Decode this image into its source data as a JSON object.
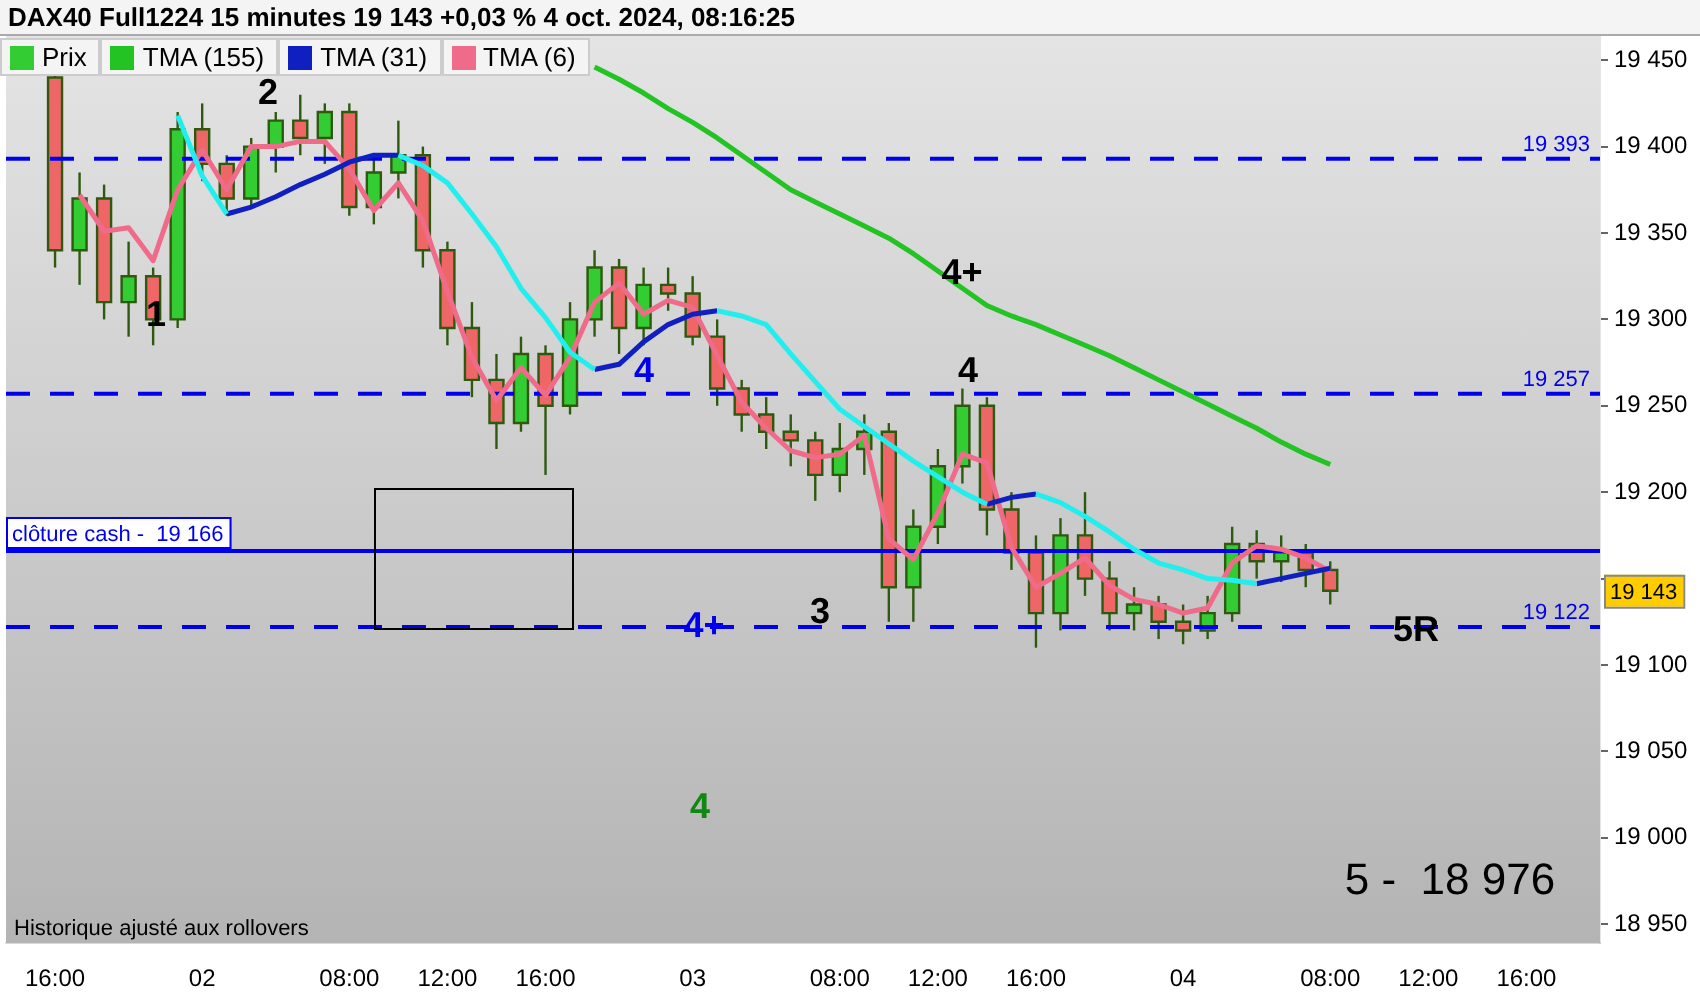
{
  "chart_data": {
    "type": "candlestick",
    "title": "DAX40 Full1224 15 minutes 19 143 +0,03 % 4 oct. 2024, 08:16:25",
    "categories": [
      null,
      null,
      "16:00",
      null,
      null,
      null,
      null,
      null,
      "02",
      null,
      null,
      null,
      null,
      null,
      "08:00",
      null,
      null,
      null,
      "12:00",
      null,
      null,
      null,
      "16:00",
      null,
      null,
      null,
      null,
      null,
      "03",
      null,
      null,
      null,
      null,
      null,
      "08:00",
      null,
      null,
      null,
      "12:00",
      null,
      null,
      null,
      "16:00",
      null,
      null,
      null,
      null,
      null,
      "04",
      null,
      null,
      null,
      null,
      null,
      "08:00",
      null,
      null,
      null,
      "12:00",
      null,
      null,
      null,
      "16:00",
      null,
      null,
      null
    ],
    "ylim": [
      18939,
      19464
    ],
    "yticks": [
      {
        "value": 18950,
        "label": "18 950"
      },
      {
        "value": 19000,
        "label": "19 000"
      },
      {
        "value": 19050,
        "label": "19 050"
      },
      {
        "value": 19100,
        "label": "19 100"
      },
      {
        "value": 19150,
        "label": null
      },
      {
        "value": 19200,
        "label": "19 200"
      },
      {
        "value": 19250,
        "label": "19 250"
      },
      {
        "value": 19300,
        "label": "19 300"
      },
      {
        "value": 19350,
        "label": "19 350"
      },
      {
        "value": 19400,
        "label": "19 400"
      },
      {
        "value": 19450,
        "label": "19 450"
      }
    ],
    "grid": false,
    "legend": "top left",
    "series": [
      {
        "type": "candlestick",
        "name": "Prix",
        "color": "#33cc33",
        "ohlc": [
          null,
          null,
          [
            19440,
            19442,
            19330,
            19340
          ],
          [
            19340,
            19385,
            19320,
            19370
          ],
          [
            19370,
            19378,
            19300,
            19310
          ],
          [
            19310,
            19345,
            19290,
            19325
          ],
          [
            19325,
            19330,
            19285,
            19300
          ],
          [
            19300,
            19420,
            19295,
            19410
          ],
          [
            19410,
            19425,
            19380,
            19390
          ],
          [
            19390,
            19395,
            19360,
            19370
          ],
          [
            19370,
            19405,
            19365,
            19400
          ],
          [
            19400,
            19420,
            19385,
            19415
          ],
          [
            19415,
            19430,
            19395,
            19405
          ],
          [
            19405,
            19425,
            19390,
            19420
          ],
          [
            19420,
            19425,
            19360,
            19365
          ],
          [
            19365,
            19395,
            19355,
            19385
          ],
          [
            19385,
            19415,
            19370,
            19395
          ],
          [
            19395,
            19400,
            19330,
            19340
          ],
          [
            19340,
            19345,
            19285,
            19295
          ],
          [
            19295,
            19310,
            19255,
            19265
          ],
          [
            19265,
            19280,
            19225,
            19240
          ],
          [
            19240,
            19290,
            19235,
            19280
          ],
          [
            19280,
            19285,
            19210,
            19250
          ],
          [
            19250,
            19310,
            19245,
            19300
          ],
          [
            19300,
            19340,
            19290,
            19330
          ],
          [
            19330,
            19335,
            19280,
            19295
          ],
          [
            19295,
            19330,
            19285,
            19320
          ],
          [
            19320,
            19330,
            19305,
            19315
          ],
          [
            19315,
            19325,
            19285,
            19290
          ],
          [
            19290,
            19300,
            19250,
            19260
          ],
          [
            19260,
            19265,
            19235,
            19245
          ],
          [
            19245,
            19255,
            19225,
            19235
          ],
          [
            19235,
            19245,
            19215,
            19230
          ],
          [
            19230,
            19235,
            19195,
            19210
          ],
          [
            19210,
            19240,
            19200,
            19225
          ],
          [
            19225,
            19245,
            19210,
            19235
          ],
          [
            19235,
            19240,
            19125,
            19145
          ],
          [
            19145,
            19190,
            19125,
            19180
          ],
          [
            19180,
            19225,
            19170,
            19215
          ],
          [
            19215,
            19260,
            19205,
            19250
          ],
          [
            19250,
            19255,
            19175,
            19190
          ],
          [
            19190,
            19200,
            19155,
            19165
          ],
          [
            19165,
            19175,
            19110,
            19130
          ],
          [
            19130,
            19185,
            19120,
            19175
          ],
          [
            19175,
            19200,
            19140,
            19150
          ],
          [
            19150,
            19160,
            19120,
            19130
          ],
          [
            19130,
            19145,
            19120,
            19135
          ],
          [
            19135,
            19140,
            19115,
            19125
          ],
          [
            19125,
            19135,
            19112,
            19120
          ],
          [
            19120,
            19140,
            19115,
            19130
          ],
          [
            19130,
            19180,
            19125,
            19170
          ],
          [
            19170,
            19178,
            19150,
            19160
          ],
          [
            19160,
            19175,
            19148,
            19165
          ],
          [
            19165,
            19170,
            19145,
            19155
          ],
          [
            19155,
            19160,
            19135,
            19143
          ],
          null,
          null,
          null,
          null,
          null,
          null,
          null,
          null,
          null,
          null,
          null
        ],
        "colors": [
          null,
          null,
          "#ee6666",
          "#33cc33",
          "#ee6666",
          "#33cc33",
          "#ee6666",
          "#33cc33",
          "#ee6666",
          "#ee6666",
          "#33cc33",
          "#33cc33",
          "#ee6666",
          "#33cc33",
          "#ee6666",
          "#33cc33",
          "#33cc33",
          "#ee6666",
          "#ee6666",
          "#ee6666",
          "#ee6666",
          "#33cc33",
          "#ee6666",
          "#33cc33",
          "#33cc33",
          "#ee6666",
          "#33cc33",
          "#ee6666",
          "#ee6666",
          "#ee6666",
          "#ee6666",
          "#ee6666",
          "#ee6666",
          "#ee6666",
          "#33cc33",
          "#33cc33",
          "#ee6666",
          "#33cc33",
          "#33cc33",
          "#33cc33",
          "#ee6666",
          "#ee6666",
          "#ee6666",
          "#33cc33",
          "#ee6666",
          "#ee6666",
          "#33cc33",
          "#ee6666",
          "#ee6666",
          "#33cc33",
          "#33cc33",
          "#ee6666",
          "#33cc33",
          "#ee6666",
          "#ee6666",
          null,
          null,
          null,
          null,
          null,
          null,
          null,
          null,
          null,
          null,
          null
        ]
      },
      {
        "type": "line",
        "name": "TMA (155)",
        "color": "#22c322",
        "values": [
          null,
          null,
          null,
          null,
          null,
          null,
          null,
          null,
          null,
          null,
          null,
          null,
          null,
          null,
          null,
          null,
          null,
          null,
          null,
          null,
          null,
          null,
          null,
          null,
          19446,
          19439,
          19431,
          19422,
          19414,
          19405,
          19395,
          19385,
          19375,
          19368,
          19361,
          19354,
          19347,
          19338,
          19328,
          19318,
          19308,
          19302,
          19297,
          19291,
          19285,
          19279,
          19272,
          19265,
          19258,
          19251,
          19244,
          19237,
          19229,
          19222,
          19216,
          null,
          null,
          null,
          null,
          null,
          null,
          null,
          null,
          null,
          null,
          null
        ]
      },
      {
        "type": "line",
        "color": "#22eeee",
        "values": [
          null,
          null,
          null,
          null,
          null,
          null,
          null,
          19418,
          19383,
          19361,
          null,
          null,
          null,
          null,
          null,
          null,
          19395,
          19389,
          19379,
          19361,
          19342,
          19318,
          19301,
          19281,
          19271,
          null,
          null,
          null,
          null,
          19305,
          19302,
          19297,
          19280,
          19264,
          19248,
          19238,
          19228,
          19218,
          19209,
          19200,
          19193,
          null,
          19199,
          19194,
          19186,
          19177,
          19167,
          19159,
          19155,
          19150,
          19149,
          19147,
          null,
          null,
          null,
          null,
          null,
          null,
          null,
          null,
          null,
          null,
          null,
          null,
          null,
          null
        ]
      },
      {
        "type": "line",
        "name": "TMA (31)",
        "color": "#1020c0",
        "values": [
          null,
          null,
          null,
          null,
          null,
          null,
          null,
          null,
          null,
          19361,
          19365,
          19371,
          19378,
          19384,
          19391,
          19395,
          19395,
          null,
          null,
          null,
          null,
          null,
          null,
          null,
          19271,
          19274,
          19287,
          19297,
          19303,
          19305,
          null,
          null,
          null,
          null,
          null,
          null,
          null,
          null,
          null,
          null,
          19193,
          19197,
          19199,
          null,
          null,
          null,
          null,
          null,
          null,
          null,
          null,
          19147,
          19150,
          19153,
          19156,
          null,
          null,
          null,
          null,
          null,
          null,
          null,
          null,
          null,
          null,
          null
        ]
      },
      {
        "type": "line",
        "name": "TMA (6)",
        "color": "#f06a8a",
        "values": [
          null,
          null,
          null,
          19372,
          19351,
          19353,
          19334,
          19375,
          19398,
          19375,
          19400,
          19400,
          19403,
          19403,
          19387,
          19363,
          19379,
          19357,
          19316,
          19278,
          19253,
          19272,
          19256,
          19278,
          19310,
          19321,
          19303,
          19311,
          19307,
          19279,
          19252,
          19237,
          19224,
          19220,
          19222,
          19233,
          19173,
          19161,
          19188,
          19222,
          19217,
          19168,
          19145,
          19153,
          19162,
          19146,
          19138,
          19135,
          19130,
          19133,
          19159,
          19169,
          19167,
          19162,
          19154,
          null,
          null,
          null,
          null,
          null,
          null,
          null,
          null,
          null,
          null,
          null
        ]
      }
    ],
    "ref_lines": [
      {
        "axis": "y",
        "value": 19393,
        "label": "19 393",
        "color": "#0000ee",
        "line_style": "dashed"
      },
      {
        "axis": "y",
        "value": 19257,
        "label": "19 257",
        "color": "#0000ee",
        "line_style": "dashed"
      },
      {
        "axis": "y",
        "value": 19122,
        "label": "19 122",
        "color": "#0000ee",
        "line_style": "dashed"
      },
      {
        "axis": "y",
        "value": 19166,
        "label": "clôture cash -  19 166",
        "color": "#0000ee",
        "line_style": "solid"
      }
    ],
    "annotations": [
      "1",
      "2",
      "4+",
      "4",
      {
        "text": "4",
        "y": 19257
      },
      {
        "text": "4+",
        "y": 19122
      },
      {
        "text": "3",
        "y": 19122
      },
      "4",
      {
        "text": "5R",
        "y": 19122
      },
      "5 -  18 976",
      {
        "text": "19 143",
        "y": 19143
      },
      "Historique ajusté aux rollovers"
    ]
  }
}
